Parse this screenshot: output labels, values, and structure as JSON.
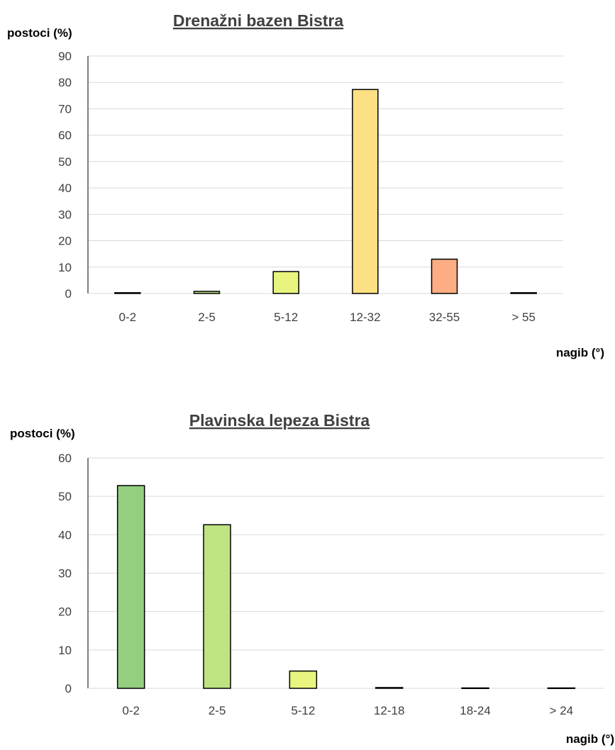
{
  "chart_data": [
    {
      "type": "bar",
      "title": "Drenažni bazen Bistra",
      "ylabel": "postoci (%)",
      "xlabel": "nagib (°)",
      "categories": [
        "0-2",
        "2-5",
        "5-12",
        "12-32",
        "32-55",
        "> 55"
      ],
      "values": [
        0.3,
        0.8,
        8.3,
        77.3,
        13.0,
        0.3
      ],
      "colors": [
        "#93cf7f",
        "#bde481",
        "#e8f47e",
        "#fde083",
        "#fdad84",
        "#f4a0a0"
      ],
      "ylim": [
        0,
        90
      ],
      "yticks": [
        0,
        10,
        20,
        30,
        40,
        50,
        60,
        70,
        80,
        90
      ],
      "grid": true,
      "legend": "none"
    },
    {
      "type": "bar",
      "title": "Plavinska lepeza Bistra",
      "ylabel": "postoci (%)",
      "xlabel": "nagib (°)",
      "categories": [
        "0-2",
        "2-5",
        "5-12",
        "12-18",
        "18-24",
        "> 24"
      ],
      "values": [
        52.8,
        42.6,
        4.5,
        0.2,
        0.1,
        0.1
      ],
      "colors": [
        "#93cf7f",
        "#bde481",
        "#e8f47e",
        "#fde083",
        "#fdc384",
        "#fdad84"
      ],
      "ylim": [
        0,
        60
      ],
      "yticks": [
        0,
        10,
        20,
        30,
        40,
        50,
        60
      ],
      "grid": true,
      "legend": "none"
    }
  ]
}
